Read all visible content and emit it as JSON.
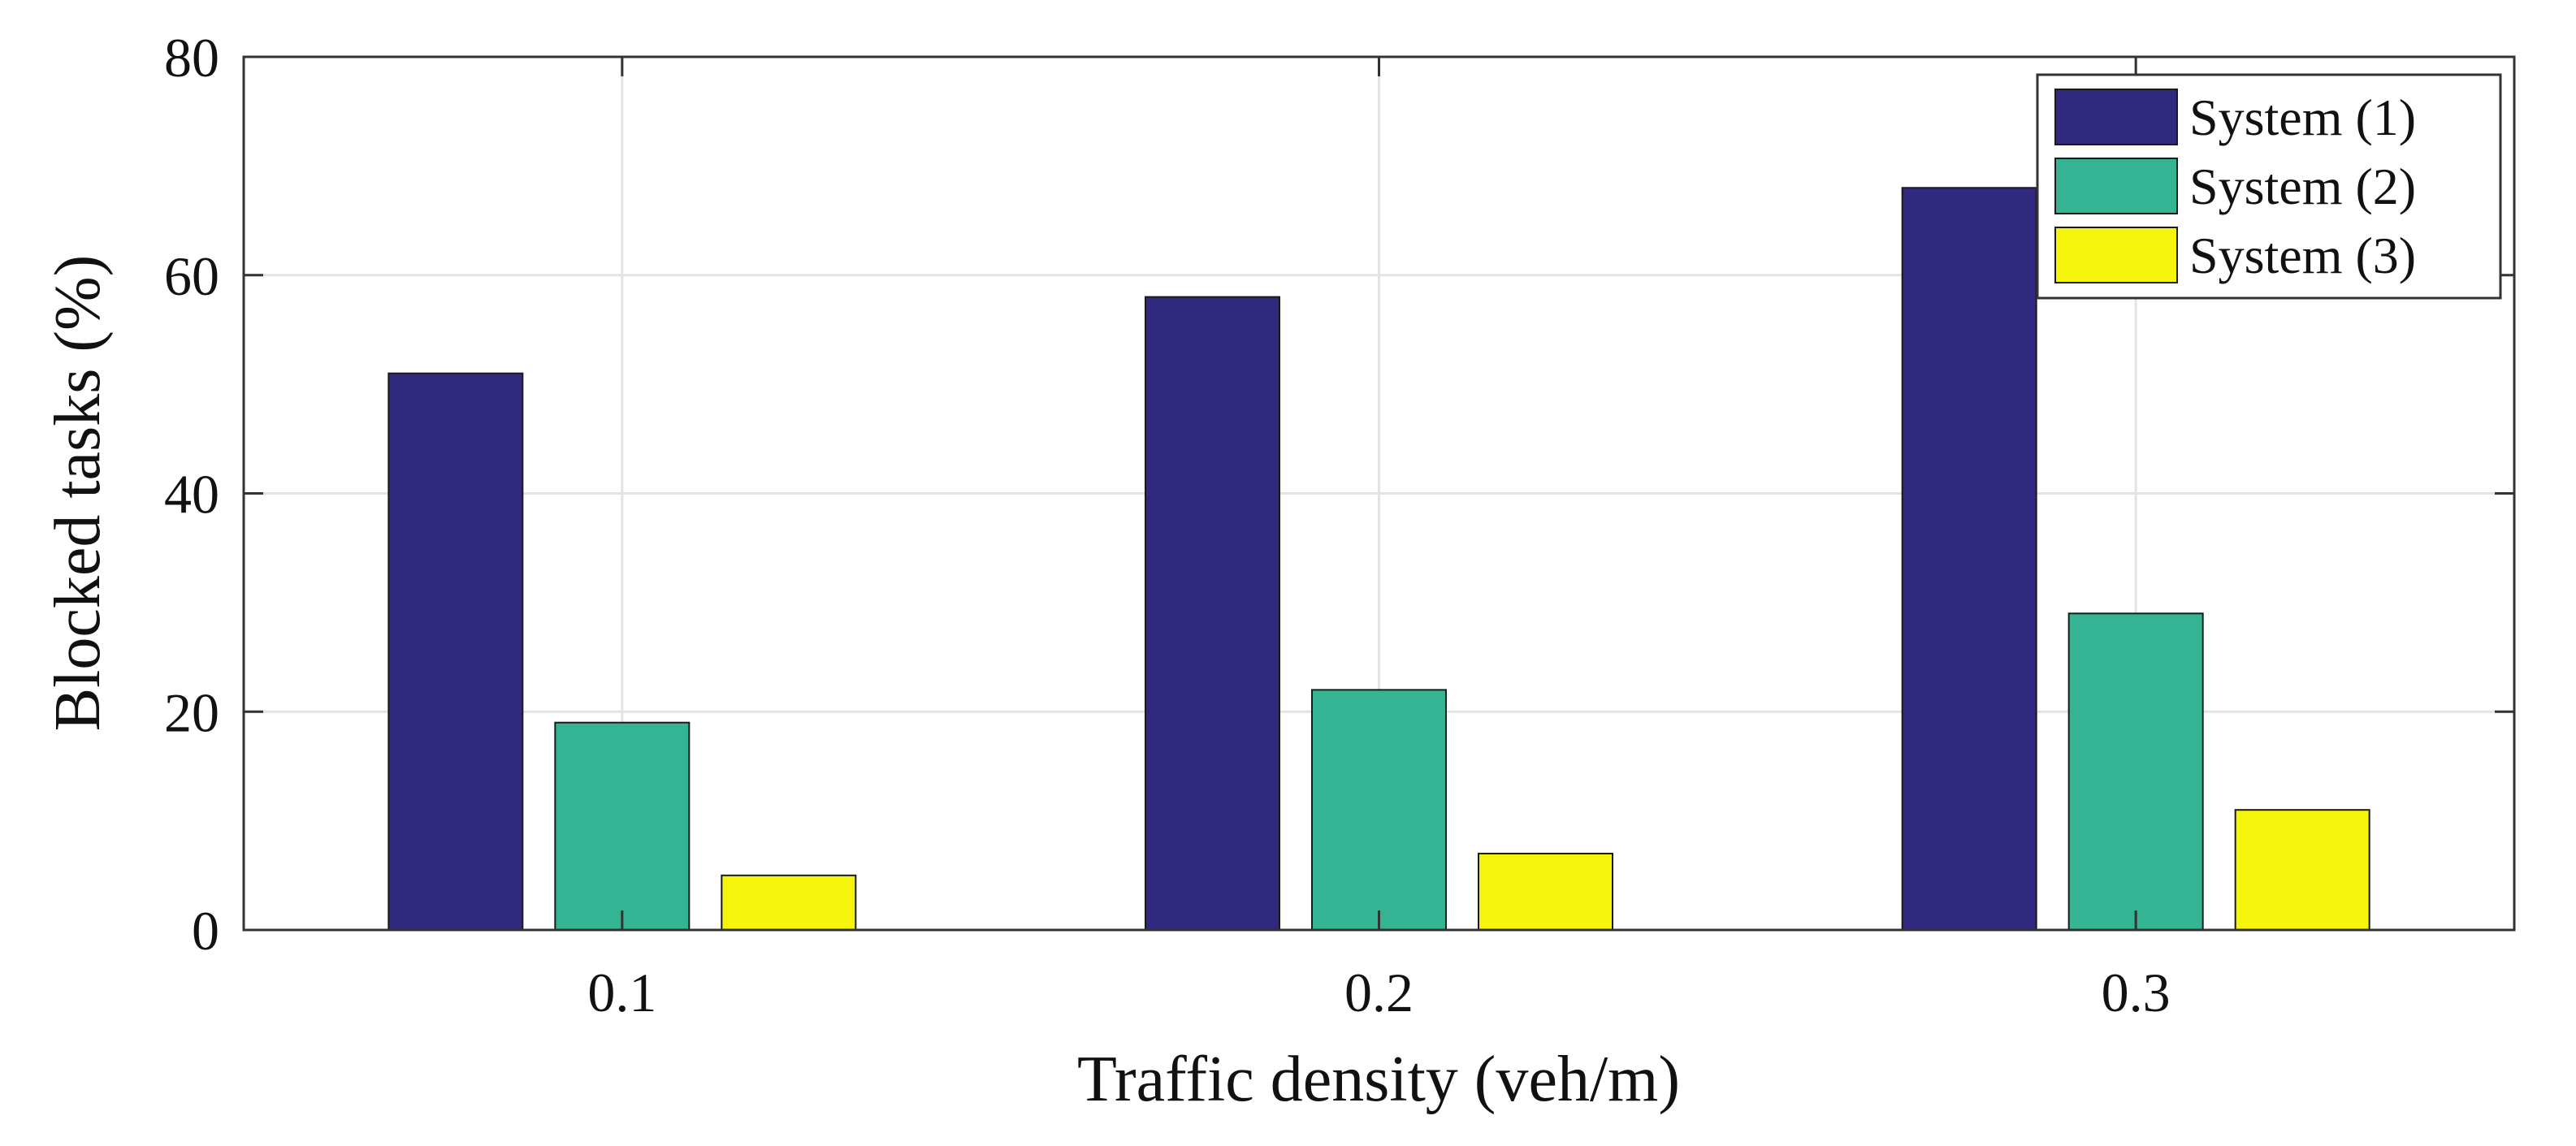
{
  "chart_data": {
    "type": "bar",
    "title": "",
    "xlabel": "Traffic density (veh/m)",
    "ylabel": "Blocked tasks (%)",
    "categories": [
      "0.1",
      "0.2",
      "0.3"
    ],
    "series": [
      {
        "name": "System (1)",
        "color": "#31287f",
        "values": [
          51,
          58,
          68
        ]
      },
      {
        "name": "System (2)",
        "color": "#34b492",
        "values": [
          19,
          22,
          29
        ]
      },
      {
        "name": "System (3)",
        "color": "#f5f50c",
        "values": [
          5,
          7,
          11
        ]
      }
    ],
    "ylim": [
      0,
      80
    ],
    "yticks": [
      "0",
      "20",
      "40",
      "60",
      "80"
    ],
    "grid": true,
    "legend_position": "top-right"
  }
}
